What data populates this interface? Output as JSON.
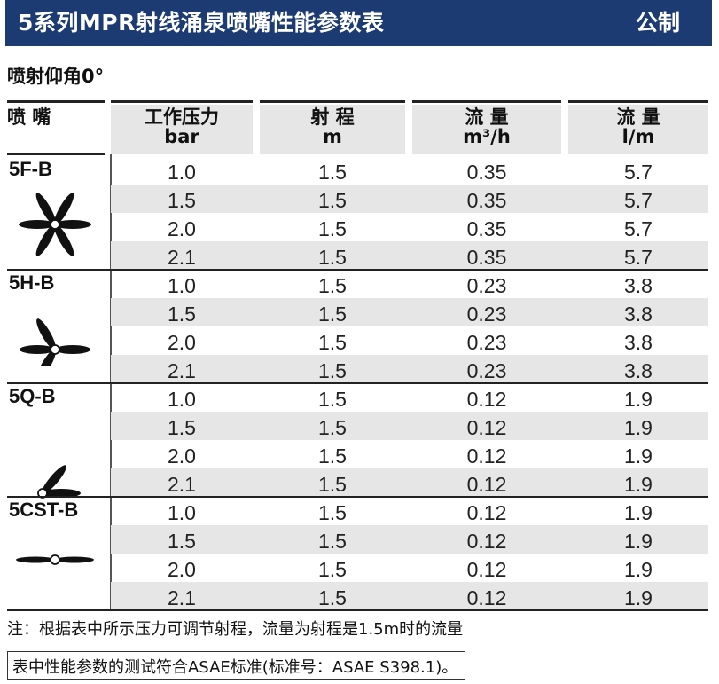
{
  "header": {
    "title": "5系列MPR射线涌泉喷嘴性能参数表",
    "unit": "公制",
    "bg_color": "#1c3b72"
  },
  "subtitle": "喷射仰角0°",
  "columns": {
    "nozzle": "喷 嘴",
    "pressure": {
      "label": "工作压力",
      "unit": "bar"
    },
    "radius": {
      "label": "射 程",
      "unit": "m"
    },
    "flow_m3": {
      "label": "流 量",
      "unit": "m³/h"
    },
    "flow_lm": {
      "label": "流 量",
      "unit": "l/m"
    }
  },
  "groups": [
    {
      "name": "5F-B",
      "icon": "full-circle-pattern-icon",
      "rows": [
        {
          "pressure": "1.0",
          "radius": "1.5",
          "flow_m3": "0.35",
          "flow_lm": "5.7"
        },
        {
          "pressure": "1.5",
          "radius": "1.5",
          "flow_m3": "0.35",
          "flow_lm": "5.7"
        },
        {
          "pressure": "2.0",
          "radius": "1.5",
          "flow_m3": "0.35",
          "flow_lm": "5.7"
        },
        {
          "pressure": "2.1",
          "radius": "1.5",
          "flow_m3": "0.35",
          "flow_lm": "5.7"
        }
      ]
    },
    {
      "name": "5H-B",
      "icon": "half-circle-pattern-icon",
      "rows": [
        {
          "pressure": "1.0",
          "radius": "1.5",
          "flow_m3": "0.23",
          "flow_lm": "3.8"
        },
        {
          "pressure": "1.5",
          "radius": "1.5",
          "flow_m3": "0.23",
          "flow_lm": "3.8"
        },
        {
          "pressure": "2.0",
          "radius": "1.5",
          "flow_m3": "0.23",
          "flow_lm": "3.8"
        },
        {
          "pressure": "2.1",
          "radius": "1.5",
          "flow_m3": "0.23",
          "flow_lm": "3.8"
        }
      ]
    },
    {
      "name": "5Q-B",
      "icon": "quarter-circle-pattern-icon",
      "rows": [
        {
          "pressure": "1.0",
          "radius": "1.5",
          "flow_m3": "0.12",
          "flow_lm": "1.9"
        },
        {
          "pressure": "1.5",
          "radius": "1.5",
          "flow_m3": "0.12",
          "flow_lm": "1.9"
        },
        {
          "pressure": "2.0",
          "radius": "1.5",
          "flow_m3": "0.12",
          "flow_lm": "1.9"
        },
        {
          "pressure": "2.1",
          "radius": "1.5",
          "flow_m3": "0.12",
          "flow_lm": "1.9"
        }
      ]
    },
    {
      "name": "5CST-B",
      "icon": "center-strip-pattern-icon",
      "rows": [
        {
          "pressure": "1.0",
          "radius": "1.5",
          "flow_m3": "0.12",
          "flow_lm": "1.9"
        },
        {
          "pressure": "1.5",
          "radius": "1.5",
          "flow_m3": "0.12",
          "flow_lm": "1.9"
        },
        {
          "pressure": "2.0",
          "radius": "1.5",
          "flow_m3": "0.12",
          "flow_lm": "1.9"
        },
        {
          "pressure": "2.1",
          "radius": "1.5",
          "flow_m3": "0.12",
          "flow_lm": "1.9"
        }
      ]
    }
  ],
  "note": "注：根据表中所示压力可调节射程，流量为射程是1.5m时的流量",
  "standard_note": "表中性能参数的测试符合ASAE标准(标准号：ASAE S398.1)。"
}
